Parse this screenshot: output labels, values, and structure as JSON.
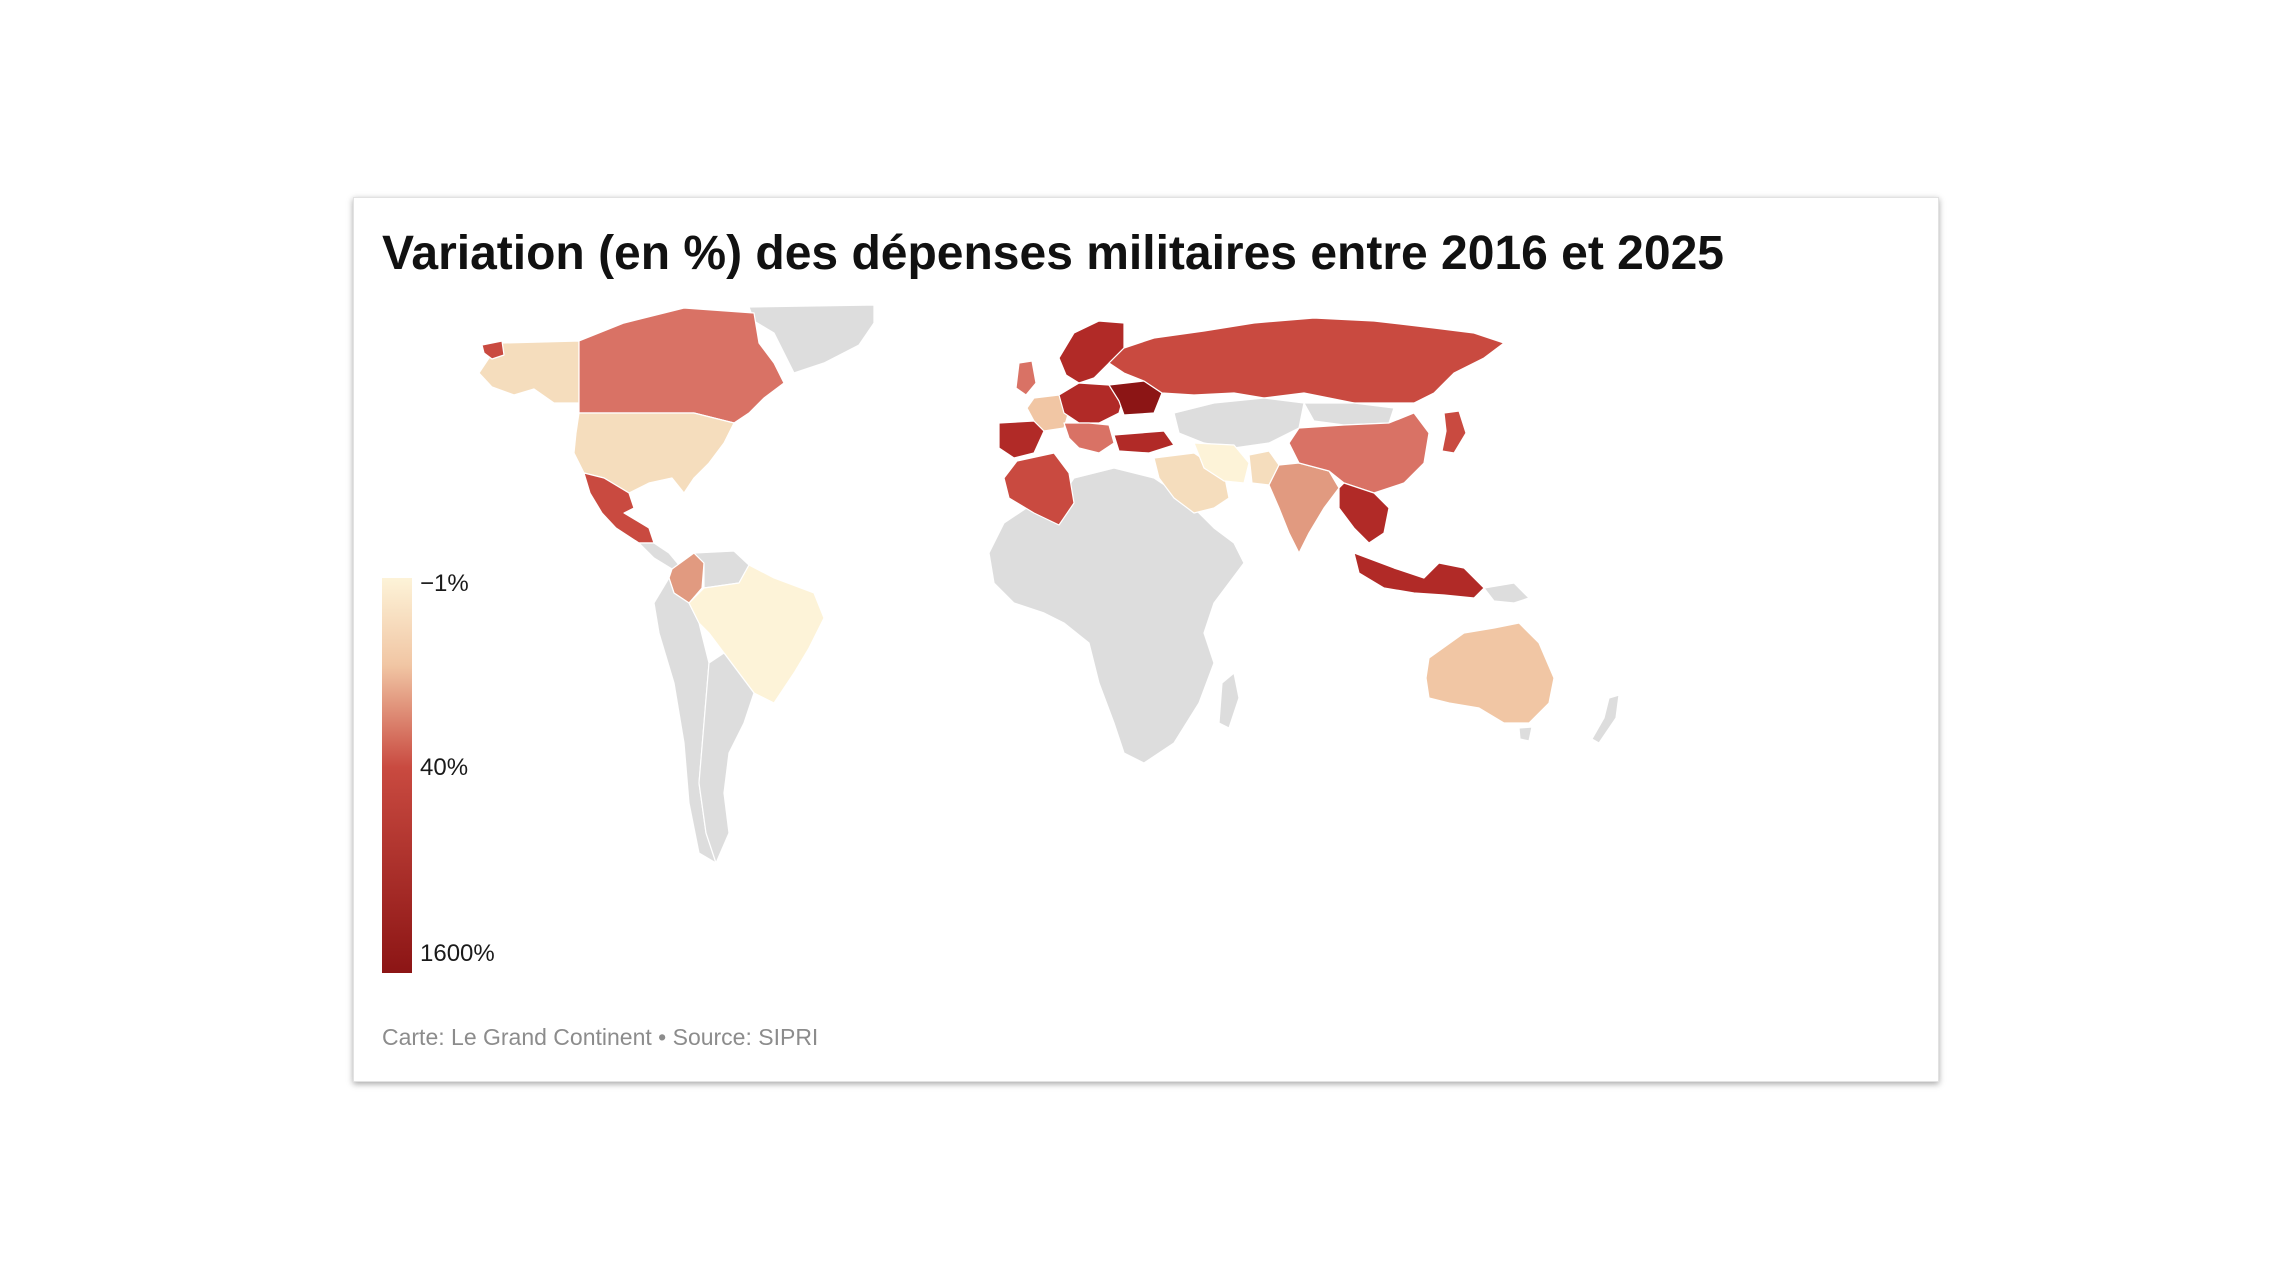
{
  "title": "Variation (en %) des dépenses militaires entre 2016 et 2025",
  "source": "Carte: Le Grand Continent • Source: SIPRI",
  "legend": {
    "min_label": "−1%",
    "mid_label": "40%",
    "max_label": "1600%",
    "stops": [
      {
        "value": -1,
        "color": "#fdf3d8"
      },
      {
        "value": 40,
        "color": "#c94a40"
      },
      {
        "value": 1600,
        "color": "#8c1515"
      }
    ]
  },
  "colors": {
    "no_data": "#dddddd",
    "very_light": "#fdf3d8",
    "light": "#f5ddbd",
    "light_mid": "#f1c6a4",
    "mid": "#e19a80",
    "mid_dark": "#d97265",
    "dark": "#c94a40",
    "darker": "#b12a27",
    "darkest": "#8c1515"
  },
  "countries": [
    {
      "name": "Alaska (USA)",
      "tier": "light"
    },
    {
      "name": "Canada",
      "tier": "mid_dark"
    },
    {
      "name": "United States",
      "tier": "light"
    },
    {
      "name": "Mexico",
      "tier": "dark"
    },
    {
      "name": "Colombia",
      "tier": "mid"
    },
    {
      "name": "Brazil",
      "tier": "very_light"
    },
    {
      "name": "Russia",
      "tier": "dark"
    },
    {
      "name": "Scandinavia",
      "tier": "darker"
    },
    {
      "name": "Central Europe",
      "tier": "darker"
    },
    {
      "name": "Ukraine",
      "tier": "darkest"
    },
    {
      "name": "Spain",
      "tier": "darker"
    },
    {
      "name": "France",
      "tier": "light_mid"
    },
    {
      "name": "United Kingdom",
      "tier": "mid_dark"
    },
    {
      "name": "Algeria",
      "tier": "dark"
    },
    {
      "name": "Turkey",
      "tier": "darker"
    },
    {
      "name": "Saudi Arabia",
      "tier": "light"
    },
    {
      "name": "Iran",
      "tier": "very_light"
    },
    {
      "name": "Pakistan",
      "tier": "light"
    },
    {
      "name": "India",
      "tier": "mid"
    },
    {
      "name": "China",
      "tier": "mid_dark"
    },
    {
      "name": "Japan",
      "tier": "dark"
    },
    {
      "name": "Vietnam",
      "tier": "darker"
    },
    {
      "name": "Indonesia",
      "tier": "darker"
    },
    {
      "name": "Australia",
      "tier": "light_mid"
    }
  ]
}
